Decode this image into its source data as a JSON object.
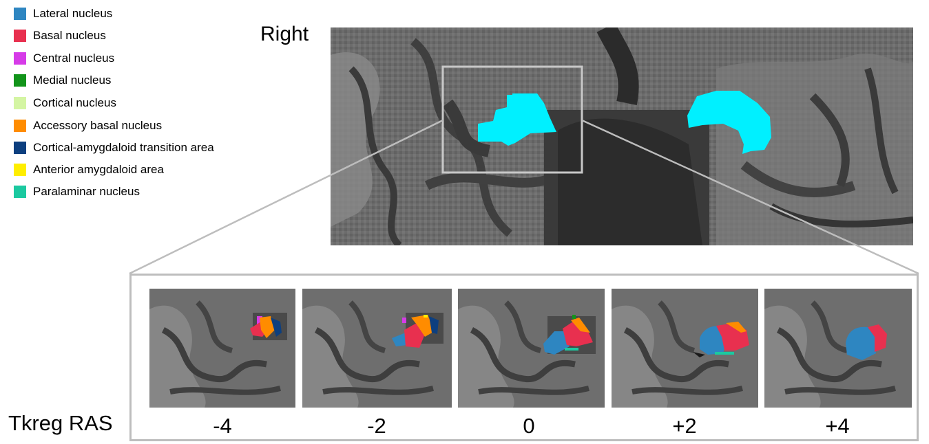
{
  "legend": {
    "items": [
      {
        "label": "Lateral nucleus",
        "color": "#2e86c1"
      },
      {
        "label": "Basal nucleus",
        "color": "#e8304f"
      },
      {
        "label": "Central nucleus",
        "color": "#d63be8"
      },
      {
        "label": "Medial nucleus",
        "color": "#12941a"
      },
      {
        "label": "Cortical nucleus",
        "color": "#d4f5a3"
      },
      {
        "label": "Accessory basal nucleus",
        "color": "#ff8c00"
      },
      {
        "label": "Cortical-amygdaloid transition area",
        "color": "#0d3f7f"
      },
      {
        "label": "Anterior amygdaloid area",
        "color": "#ffee00"
      },
      {
        "label": "Paralaminar nucleus",
        "color": "#1bc9a0"
      }
    ]
  },
  "main": {
    "title": "Right",
    "highlight_color": "#00f0ff"
  },
  "slices": {
    "axis_label": "Tkreg RAS",
    "labels": [
      "-4",
      "-2",
      "0",
      "+2",
      "+4"
    ]
  },
  "colors": {
    "frame": "#bdbdbd",
    "zoom_box": "#c8c8c8"
  }
}
